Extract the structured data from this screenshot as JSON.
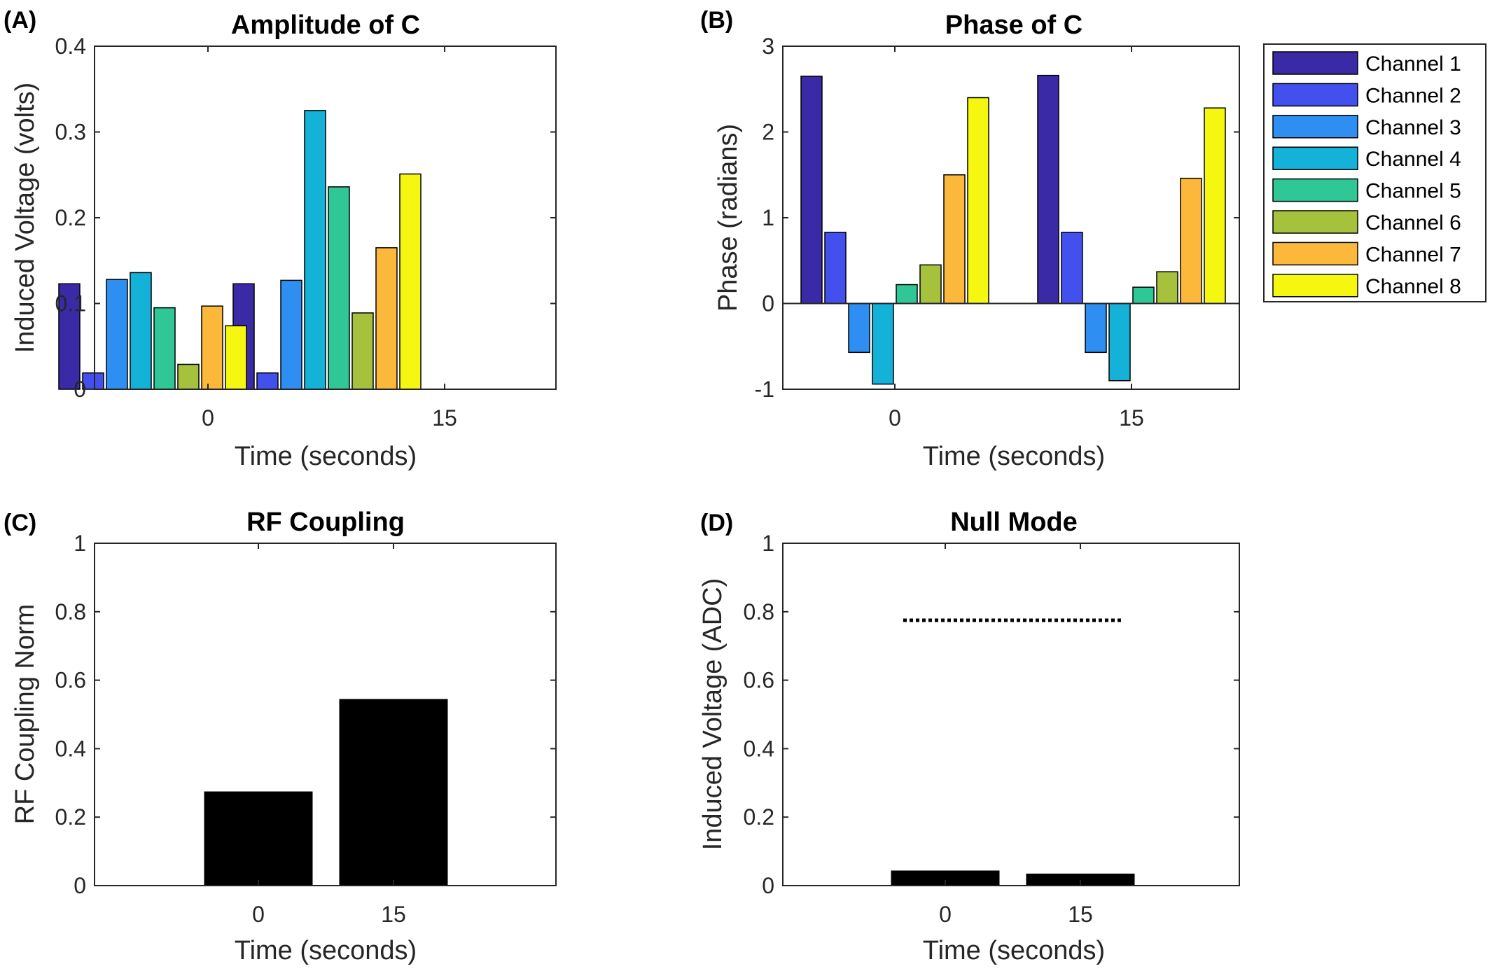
{
  "chart_data": [
    {
      "panel": "(A)",
      "type": "bar",
      "title": "Amplitude of C",
      "xlabel": "Time (seconds)",
      "ylabel": "Induced Voltage (volts)",
      "categories": [
        "0",
        "15"
      ],
      "ylim": [
        0,
        0.4
      ],
      "yticks": [
        0,
        0.1,
        0.2,
        0.3,
        0.4
      ],
      "ytick_labels": [
        "0",
        "0.1",
        "0.2",
        "0.3",
        "0.4"
      ],
      "series": [
        {
          "name": "Channel 1",
          "values": [
            0.123,
            0.123
          ]
        },
        {
          "name": "Channel 2",
          "values": [
            0.019,
            0.019
          ]
        },
        {
          "name": "Channel 3",
          "values": [
            0.128,
            0.127
          ]
        },
        {
          "name": "Channel 4",
          "values": [
            0.136,
            0.325
          ]
        },
        {
          "name": "Channel 5",
          "values": [
            0.095,
            0.236
          ]
        },
        {
          "name": "Channel 6",
          "values": [
            0.029,
            0.089
          ]
        },
        {
          "name": "Channel 7",
          "values": [
            0.097,
            0.165
          ]
        },
        {
          "name": "Channel 8",
          "values": [
            0.074,
            0.251
          ]
        }
      ]
    },
    {
      "panel": "(B)",
      "type": "bar",
      "title": "Phase of C",
      "xlabel": "Time (seconds)",
      "ylabel": "Phase (radians)",
      "categories": [
        "0",
        "15"
      ],
      "ylim": [
        -1,
        3
      ],
      "yticks": [
        -1,
        0,
        1,
        2,
        3
      ],
      "ytick_labels": [
        "-1",
        "0",
        "1",
        "2",
        "3"
      ],
      "legend_position": "outside-right",
      "series": [
        {
          "name": "Channel 1",
          "values": [
            2.65,
            2.66
          ]
        },
        {
          "name": "Channel 2",
          "values": [
            0.83,
            0.83
          ]
        },
        {
          "name": "Channel 3",
          "values": [
            -0.57,
            -0.57
          ]
        },
        {
          "name": "Channel 4",
          "values": [
            -0.94,
            -0.9
          ]
        },
        {
          "name": "Channel 5",
          "values": [
            0.22,
            0.19
          ]
        },
        {
          "name": "Channel 6",
          "values": [
            0.45,
            0.37
          ]
        },
        {
          "name": "Channel 7",
          "values": [
            1.5,
            1.46
          ]
        },
        {
          "name": "Channel 8",
          "values": [
            2.4,
            2.28
          ]
        }
      ]
    },
    {
      "panel": "(C)",
      "type": "bar",
      "title": "RF Coupling",
      "xlabel": "Time (seconds)",
      "ylabel": "RF Coupling Norm",
      "categories": [
        "0",
        "15"
      ],
      "ylim": [
        0,
        1
      ],
      "yticks": [
        0,
        0.2,
        0.4,
        0.6,
        0.8,
        1
      ],
      "ytick_labels": [
        "0",
        "0.2",
        "0.4",
        "0.6",
        "0.8",
        "1"
      ],
      "values": [
        0.275,
        0.545
      ]
    },
    {
      "panel": "(D)",
      "type": "bar",
      "title": "Null Mode",
      "xlabel": "Time (seconds)",
      "ylabel": "Induced Voltage (ADC)",
      "categories": [
        "0",
        "15"
      ],
      "ylim": [
        0,
        1
      ],
      "yticks": [
        0,
        0.2,
        0.4,
        0.6,
        0.8,
        1
      ],
      "ytick_labels": [
        "0",
        "0.2",
        "0.4",
        "0.6",
        "0.8",
        "1"
      ],
      "values": [
        0.044,
        0.035
      ],
      "reference_line": {
        "value": 0.775,
        "style": "dotted"
      }
    }
  ],
  "colors": {
    "channels": [
      "#3a2aa5",
      "#4450ee",
      "#2f8ef2",
      "#14b1d8",
      "#2fc795",
      "#a6c13c",
      "#fbb83a",
      "#f6f710"
    ],
    "bar_black": "#000000",
    "axis": "#262626"
  }
}
